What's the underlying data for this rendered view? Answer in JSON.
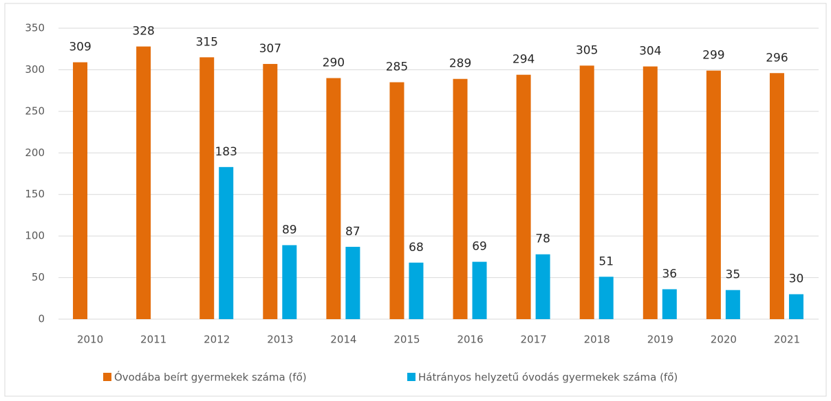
{
  "chart_data": {
    "type": "bar",
    "categories": [
      "2010",
      "2011",
      "2012",
      "2013",
      "2014",
      "2015",
      "2016",
      "2017",
      "2018",
      "2019",
      "2020",
      "2021"
    ],
    "series": [
      {
        "name": "Óvodába beírt gyermekek száma (fő)",
        "color": "#e36c0a",
        "values": [
          309,
          328,
          315,
          307,
          290,
          285,
          289,
          294,
          305,
          304,
          299,
          296
        ]
      },
      {
        "name": "Hátrányos helyzetű óvodás gyermekek száma (fő)",
        "color": "#00a8e0",
        "values": [
          null,
          null,
          183,
          89,
          87,
          68,
          69,
          78,
          51,
          36,
          35,
          30
        ]
      }
    ],
    "ylim": [
      0,
      350
    ],
    "yticks": [
      0,
      50,
      100,
      150,
      200,
      250,
      300,
      350
    ],
    "grid": true,
    "legend": "bottom"
  }
}
